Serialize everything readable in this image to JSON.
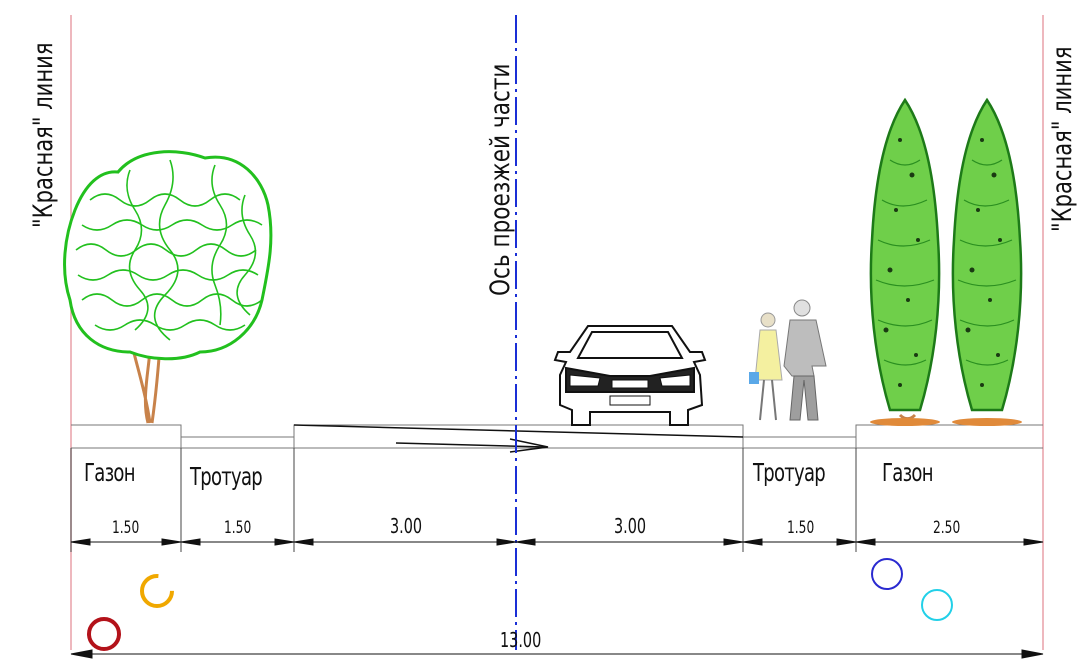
{
  "labels": {
    "red_line_left": "\"Красная\" линия",
    "red_line_right": "\"Красная\" линия",
    "axis": "Ось проезжей части"
  },
  "zones": {
    "lawn_left": "Газон",
    "sidewalk_left": "Тротуар",
    "sidewalk_right": "Тротуар",
    "lawn_right": "Газон"
  },
  "dimensions": {
    "d1": "1.50",
    "d2": "1.50",
    "d3": "3.00",
    "d4": "3.00",
    "d5": "1.50",
    "d6": "2.50",
    "total": "13.00"
  },
  "colors": {
    "red_line": "#e8a0a8",
    "axis": "#1a2fd6",
    "foliage": "#22c01e",
    "trunk": "#c8824a",
    "circle_dark_red": "#b3121a",
    "circle_orange": "#f0a800",
    "circle_blue": "#2a2ad0",
    "circle_cyan": "#22d0e8"
  }
}
